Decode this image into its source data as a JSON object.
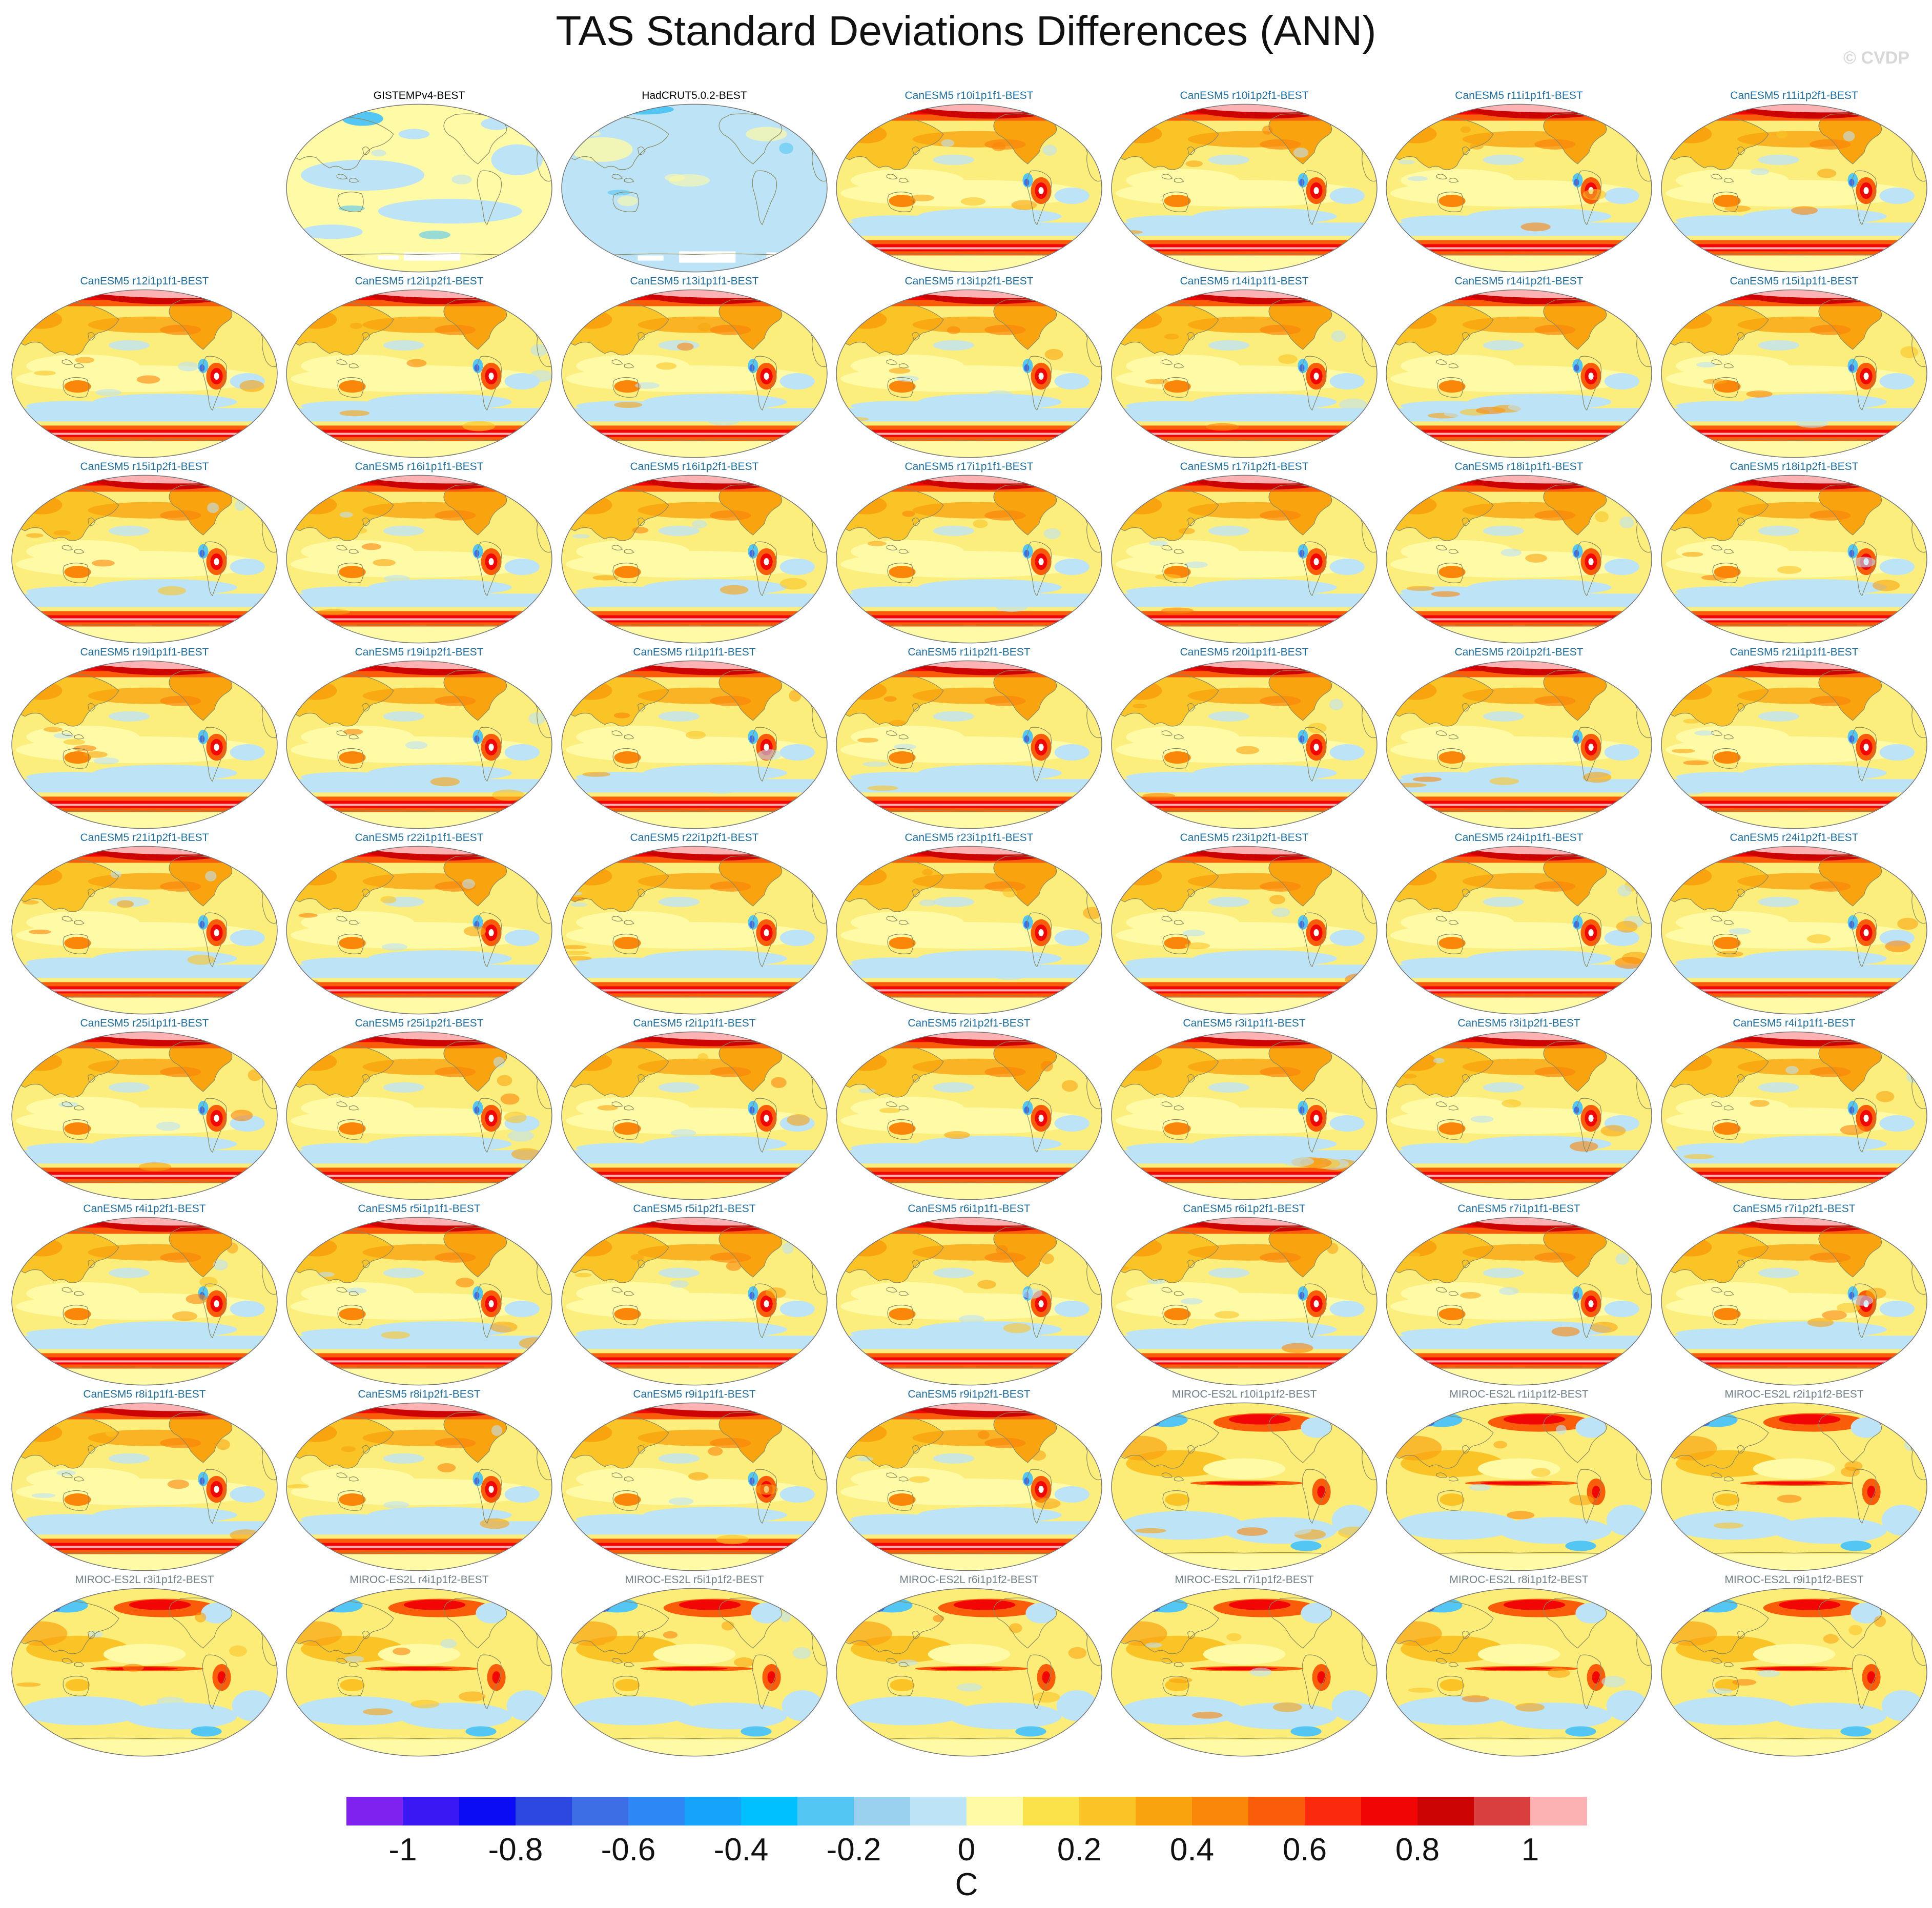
{
  "title": "TAS Standard Deviations Differences (ANN)",
  "copyright": "© CVDP",
  "colors": {
    "obs_title": "#000000",
    "canesm_title": "#1c6d9e",
    "miroc_title": "#6f7f86",
    "coast": "#8a8a60"
  },
  "panels": [
    {
      "label": "GISTEMPv4-BEST",
      "group": "obs",
      "row": 0,
      "col": 1
    },
    {
      "label": "HadCRUT5.0.2-BEST",
      "group": "obs2",
      "row": 0,
      "col": 2
    },
    {
      "label": "CanESM5 r10i1p1f1-BEST",
      "group": "canesm",
      "row": 0,
      "col": 3
    },
    {
      "label": "CanESM5 r10i1p2f1-BEST",
      "group": "canesm",
      "row": 0,
      "col": 4
    },
    {
      "label": "CanESM5 r11i1p1f1-BEST",
      "group": "canesm",
      "row": 0,
      "col": 5
    },
    {
      "label": "CanESM5 r11i1p2f1-BEST",
      "group": "canesm",
      "row": 0,
      "col": 6
    },
    {
      "label": "CanESM5 r12i1p1f1-BEST",
      "group": "canesm",
      "row": 1,
      "col": 0
    },
    {
      "label": "CanESM5 r12i1p2f1-BEST",
      "group": "canesm",
      "row": 1,
      "col": 1
    },
    {
      "label": "CanESM5 r13i1p1f1-BEST",
      "group": "canesm",
      "row": 1,
      "col": 2
    },
    {
      "label": "CanESM5 r13i1p2f1-BEST",
      "group": "canesm",
      "row": 1,
      "col": 3
    },
    {
      "label": "CanESM5 r14i1p1f1-BEST",
      "group": "canesm",
      "row": 1,
      "col": 4
    },
    {
      "label": "CanESM5 r14i1p2f1-BEST",
      "group": "canesm",
      "row": 1,
      "col": 5
    },
    {
      "label": "CanESM5 r15i1p1f1-BEST",
      "group": "canesm",
      "row": 1,
      "col": 6
    },
    {
      "label": "CanESM5 r15i1p2f1-BEST",
      "group": "canesm",
      "row": 2,
      "col": 0
    },
    {
      "label": "CanESM5 r16i1p1f1-BEST",
      "group": "canesm",
      "row": 2,
      "col": 1
    },
    {
      "label": "CanESM5 r16i1p2f1-BEST",
      "group": "canesm",
      "row": 2,
      "col": 2
    },
    {
      "label": "CanESM5 r17i1p1f1-BEST",
      "group": "canesm",
      "row": 2,
      "col": 3
    },
    {
      "label": "CanESM5 r17i1p2f1-BEST",
      "group": "canesm",
      "row": 2,
      "col": 4
    },
    {
      "label": "CanESM5 r18i1p1f1-BEST",
      "group": "canesm",
      "row": 2,
      "col": 5
    },
    {
      "label": "CanESM5 r18i1p2f1-BEST",
      "group": "canesm",
      "row": 2,
      "col": 6
    },
    {
      "label": "CanESM5 r19i1p1f1-BEST",
      "group": "canesm",
      "row": 3,
      "col": 0
    },
    {
      "label": "CanESM5 r19i1p2f1-BEST",
      "group": "canesm",
      "row": 3,
      "col": 1
    },
    {
      "label": "CanESM5 r1i1p1f1-BEST",
      "group": "canesm",
      "row": 3,
      "col": 2
    },
    {
      "label": "CanESM5 r1i1p2f1-BEST",
      "group": "canesm",
      "row": 3,
      "col": 3
    },
    {
      "label": "CanESM5 r20i1p1f1-BEST",
      "group": "canesm",
      "row": 3,
      "col": 4
    },
    {
      "label": "CanESM5 r20i1p2f1-BEST",
      "group": "canesm",
      "row": 3,
      "col": 5
    },
    {
      "label": "CanESM5 r21i1p1f1-BEST",
      "group": "canesm",
      "row": 3,
      "col": 6
    },
    {
      "label": "CanESM5 r21i1p2f1-BEST",
      "group": "canesm",
      "row": 4,
      "col": 0
    },
    {
      "label": "CanESM5 r22i1p1f1-BEST",
      "group": "canesm",
      "row": 4,
      "col": 1
    },
    {
      "label": "CanESM5 r22i1p2f1-BEST",
      "group": "canesm",
      "row": 4,
      "col": 2
    },
    {
      "label": "CanESM5 r23i1p1f1-BEST",
      "group": "canesm",
      "row": 4,
      "col": 3
    },
    {
      "label": "CanESM5 r23i1p2f1-BEST",
      "group": "canesm",
      "row": 4,
      "col": 4
    },
    {
      "label": "CanESM5 r24i1p1f1-BEST",
      "group": "canesm",
      "row": 4,
      "col": 5
    },
    {
      "label": "CanESM5 r24i1p2f1-BEST",
      "group": "canesm",
      "row": 4,
      "col": 6
    },
    {
      "label": "CanESM5 r25i1p1f1-BEST",
      "group": "canesm",
      "row": 5,
      "col": 0
    },
    {
      "label": "CanESM5 r25i1p2f1-BEST",
      "group": "canesm",
      "row": 5,
      "col": 1
    },
    {
      "label": "CanESM5 r2i1p1f1-BEST",
      "group": "canesm",
      "row": 5,
      "col": 2
    },
    {
      "label": "CanESM5 r2i1p2f1-BEST",
      "group": "canesm",
      "row": 5,
      "col": 3
    },
    {
      "label": "CanESM5 r3i1p1f1-BEST",
      "group": "canesm",
      "row": 5,
      "col": 4
    },
    {
      "label": "CanESM5 r3i1p2f1-BEST",
      "group": "canesm",
      "row": 5,
      "col": 5
    },
    {
      "label": "CanESM5 r4i1p1f1-BEST",
      "group": "canesm",
      "row": 5,
      "col": 6
    },
    {
      "label": "CanESM5 r4i1p2f1-BEST",
      "group": "canesm",
      "row": 6,
      "col": 0
    },
    {
      "label": "CanESM5 r5i1p1f1-BEST",
      "group": "canesm",
      "row": 6,
      "col": 1
    },
    {
      "label": "CanESM5 r5i1p2f1-BEST",
      "group": "canesm",
      "row": 6,
      "col": 2
    },
    {
      "label": "CanESM5 r6i1p1f1-BEST",
      "group": "canesm",
      "row": 6,
      "col": 3
    },
    {
      "label": "CanESM5 r6i1p2f1-BEST",
      "group": "canesm",
      "row": 6,
      "col": 4
    },
    {
      "label": "CanESM5 r7i1p1f1-BEST",
      "group": "canesm",
      "row": 6,
      "col": 5
    },
    {
      "label": "CanESM5 r7i1p2f1-BEST",
      "group": "canesm",
      "row": 6,
      "col": 6
    },
    {
      "label": "CanESM5 r8i1p1f1-BEST",
      "group": "canesm",
      "row": 7,
      "col": 0
    },
    {
      "label": "CanESM5 r8i1p2f1-BEST",
      "group": "canesm",
      "row": 7,
      "col": 1
    },
    {
      "label": "CanESM5 r9i1p1f1-BEST",
      "group": "canesm",
      "row": 7,
      "col": 2
    },
    {
      "label": "CanESM5 r9i1p2f1-BEST",
      "group": "canesm",
      "row": 7,
      "col": 3
    },
    {
      "label": "MIROC-ES2L r10i1p1f2-BEST",
      "group": "miroc",
      "row": 7,
      "col": 4
    },
    {
      "label": "MIROC-ES2L r1i1p1f2-BEST",
      "group": "miroc",
      "row": 7,
      "col": 5
    },
    {
      "label": "MIROC-ES2L r2i1p1f2-BEST",
      "group": "miroc",
      "row": 7,
      "col": 6
    },
    {
      "label": "MIROC-ES2L r3i1p1f2-BEST",
      "group": "miroc",
      "row": 8,
      "col": 0
    },
    {
      "label": "MIROC-ES2L r4i1p1f2-BEST",
      "group": "miroc",
      "row": 8,
      "col": 1
    },
    {
      "label": "MIROC-ES2L r5i1p1f2-BEST",
      "group": "miroc",
      "row": 8,
      "col": 2
    },
    {
      "label": "MIROC-ES2L r6i1p1f2-BEST",
      "group": "miroc",
      "row": 8,
      "col": 3
    },
    {
      "label": "MIROC-ES2L r7i1p1f2-BEST",
      "group": "miroc",
      "row": 8,
      "col": 4
    },
    {
      "label": "MIROC-ES2L r8i1p1f2-BEST",
      "group": "miroc",
      "row": 8,
      "col": 5
    },
    {
      "label": "MIROC-ES2L r9i1p1f2-BEST",
      "group": "miroc",
      "row": 8,
      "col": 6
    }
  ],
  "colorbar": {
    "unit": "C",
    "colors": [
      "#7f22f0",
      "#3a18f3",
      "#0c0cf4",
      "#2c48e0",
      "#3e6ee6",
      "#2d88f5",
      "#16a4fa",
      "#00bfff",
      "#54c6f3",
      "#98d0ee",
      "#bde3f6",
      "#fefaa6",
      "#fbe14a",
      "#fac426",
      "#f9a40f",
      "#fa860a",
      "#fa5d0a",
      "#fb2a0c",
      "#f20505",
      "#cd0404",
      "#da3f3f",
      "#fcb2b2"
    ],
    "tick_labels": [
      "-1",
      "-0.8",
      "-0.6",
      "-0.4",
      "-0.2",
      "0",
      "0.2",
      "0.4",
      "0.6",
      "0.8",
      "1"
    ]
  }
}
